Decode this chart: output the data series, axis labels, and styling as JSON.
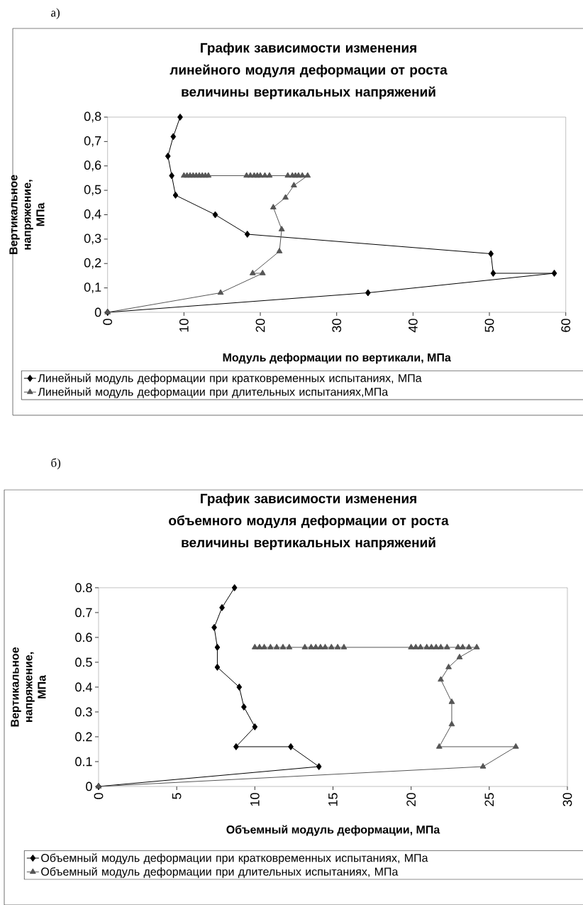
{
  "chart_data": [
    {
      "type": "line",
      "title": "График зависимости изменения линейного модуля деформации от роста величины вертикальных напряжений",
      "xlabel": "Модуль деформации по вертикали, МПа",
      "ylabel": "Вертикальное напряжение, МПа",
      "annotations": [
        "а)"
      ],
      "xlim": [
        0,
        60
      ],
      "xticks": [
        0,
        10,
        20,
        30,
        40,
        50,
        60
      ],
      "ylim": [
        0,
        0.8
      ],
      "yticks": [
        0,
        {
          "value": 0.1,
          "label": "0,1"
        },
        {
          "value": 0.2,
          "label": "0,2"
        },
        {
          "value": 0.3,
          "label": "0,3"
        },
        {
          "value": 0.4,
          "label": "0,4"
        },
        {
          "value": 0.5,
          "label": "0,5"
        },
        {
          "value": 0.6,
          "label": "0,6"
        },
        {
          "value": 0.7,
          "label": "0,7"
        },
        {
          "value": 0.8,
          "label": "0,8"
        }
      ],
      "legend": "bottom",
      "grid": false,
      "series": [
        {
          "name": "Линейный модуль деформации при кратковременных испытаниях, МПа",
          "color": "#000000",
          "marker": "diamond",
          "x": [
            9.5,
            8.6,
            7.9,
            8.4,
            8.9,
            14.1,
            18.3,
            50.2,
            50.5,
            58.5,
            34.1,
            0
          ],
          "values": [
            0.8,
            0.72,
            0.64,
            0.56,
            0.48,
            0.4,
            0.32,
            0.24,
            0.16,
            0.16,
            0.08,
            0
          ]
        },
        {
          "name": "Линейный модуль деформации  при длительных испытаниях,МПа",
          "color": "#555555",
          "marker": "triangle",
          "x": [
            0,
            14.8,
            20.3,
            19.0,
            22.5,
            22.8,
            21.7,
            23.3,
            24.4,
            26.2,
            25.5,
            25.0,
            24.6,
            24.2,
            23.6,
            21.2,
            20.6,
            20.0,
            19.6,
            19.2,
            18.7,
            18.2,
            13.2,
            12.8,
            12.4,
            12.0,
            11.6,
            11.2,
            10.8,
            10.4,
            10.0
          ],
          "values": [
            0,
            0.08,
            0.16,
            0.16,
            0.25,
            0.34,
            0.43,
            0.47,
            0.52,
            0.56,
            0.56,
            0.56,
            0.56,
            0.56,
            0.56,
            0.56,
            0.56,
            0.56,
            0.56,
            0.56,
            0.56,
            0.56,
            0.56,
            0.56,
            0.56,
            0.56,
            0.56,
            0.56,
            0.56,
            0.56,
            0.56
          ]
        }
      ]
    },
    {
      "type": "line",
      "title": "График зависимости изменения объемного модуля деформации от роста величины вертикальных напряжений",
      "xlabel": "Объемный модуль деформации, МПа",
      "ylabel": "Вертикальное напряжение, МПа",
      "annotations": [
        "б)"
      ],
      "xlim": [
        0,
        30
      ],
      "xticks": [
        0,
        5,
        10,
        15,
        20,
        25,
        30
      ],
      "ylim": [
        0,
        0.8
      ],
      "yticks": [
        0,
        0.1,
        0.2,
        0.3,
        0.4,
        0.5,
        0.6,
        0.7,
        0.8
      ],
      "legend": "bottom",
      "grid": false,
      "series": [
        {
          "name": "Объемный модуль деформации при кратковременных испытаниях, МПа",
          "color": "#000000",
          "marker": "diamond",
          "x": [
            8.7,
            7.9,
            7.4,
            7.6,
            7.6,
            9.0,
            9.3,
            10.0,
            8.8,
            12.3,
            14.1,
            0
          ],
          "values": [
            0.8,
            0.72,
            0.64,
            0.56,
            0.48,
            0.4,
            0.32,
            0.24,
            0.16,
            0.16,
            0.08,
            0
          ]
        },
        {
          "name": "Объемный модуль деформации при длительных испытаниях, МПа",
          "color": "#555555",
          "marker": "triangle",
          "x": [
            0,
            24.6,
            26.7,
            21.8,
            22.6,
            22.6,
            21.9,
            22.4,
            23.1,
            24.2,
            23.7,
            23.3,
            23.0,
            22.3,
            21.9,
            21.6,
            21.3,
            21.0,
            20.6,
            20.3,
            20.0,
            15.7,
            15.3,
            14.9,
            14.5,
            14.2,
            13.9,
            13.6,
            13.2,
            12.2,
            11.8,
            11.4,
            11.0,
            10.6,
            10.3,
            10.0
          ],
          "values": [
            0,
            0.08,
            0.16,
            0.16,
            0.25,
            0.34,
            0.43,
            0.48,
            0.52,
            0.56,
            0.56,
            0.56,
            0.56,
            0.56,
            0.56,
            0.56,
            0.56,
            0.56,
            0.56,
            0.56,
            0.56,
            0.56,
            0.56,
            0.56,
            0.56,
            0.56,
            0.56,
            0.56,
            0.56,
            0.56,
            0.56,
            0.56,
            0.56,
            0.56,
            0.56,
            0.56
          ]
        }
      ]
    }
  ]
}
